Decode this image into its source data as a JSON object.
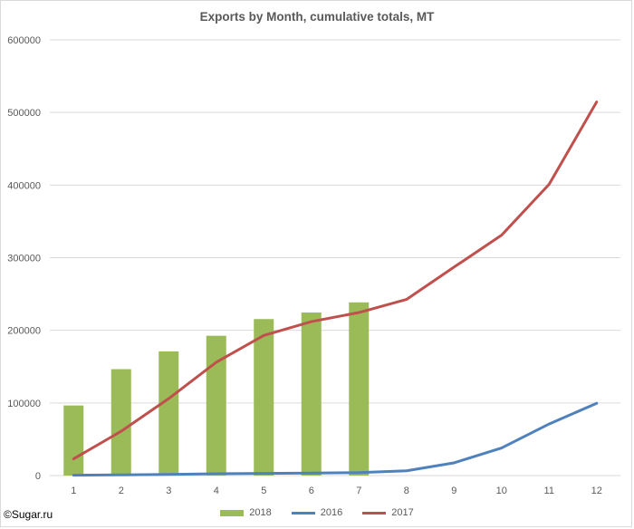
{
  "chart_data": {
    "type": "bar+line",
    "title": "Exports by Month, cumulative totals, MT",
    "xlabel": "",
    "ylabel": "",
    "categories": [
      "1",
      "2",
      "3",
      "4",
      "5",
      "6",
      "7",
      "8",
      "9",
      "10",
      "11",
      "12"
    ],
    "ylim": [
      0,
      600000
    ],
    "yticks": [
      "0",
      "100000",
      "200000",
      "300000",
      "400000",
      "500000",
      "600000"
    ],
    "grid": true,
    "legend_placement": "bottom",
    "series": [
      {
        "name": "2018",
        "kind": "bar",
        "color": "#9bbb59",
        "values": [
          96500,
          146500,
          171000,
          192500,
          215500,
          224500,
          238500,
          null,
          null,
          null,
          null,
          null
        ]
      },
      {
        "name": "2016",
        "kind": "line",
        "color": "#4f81bd",
        "values": [
          500,
          1000,
          1500,
          2500,
          3000,
          3500,
          4000,
          6500,
          17500,
          38000,
          71000,
          99500
        ]
      },
      {
        "name": "2017",
        "kind": "line",
        "color": "#c0504d",
        "values": [
          23000,
          61000,
          106000,
          156000,
          193000,
          212000,
          224500,
          242500,
          287000,
          331000,
          401000,
          514500
        ]
      }
    ]
  },
  "credit": "©Sugar.ru"
}
